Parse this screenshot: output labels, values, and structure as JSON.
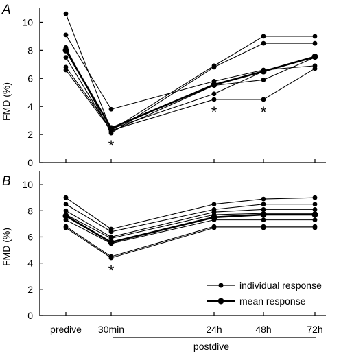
{
  "chart_data": [
    {
      "type": "line",
      "panel_label": "A",
      "ylabel": "FMD (%)",
      "ylim": [
        0,
        11
      ],
      "yticks": [
        "0",
        "2",
        "4",
        "6",
        "8",
        "10"
      ],
      "ytick_values": [
        0,
        2,
        4,
        6,
        8,
        10
      ],
      "x": [
        0,
        1,
        2,
        3,
        4
      ],
      "series": [
        {
          "kind": "individual",
          "values": [
            10.6,
            2.3,
            6.9,
            9.0,
            9.0
          ]
        },
        {
          "kind": "individual",
          "values": [
            9.1,
            3.8,
            5.8,
            6.6,
            6.9
          ]
        },
        {
          "kind": "individual",
          "values": [
            8.2,
            2.1,
            6.8,
            8.5,
            8.5
          ]
        },
        {
          "kind": "individual",
          "values": [
            7.5,
            2.2,
            5.5,
            5.9,
            7.5
          ]
        },
        {
          "kind": "individual",
          "values": [
            6.8,
            2.4,
            4.9,
            6.5,
            7.5
          ]
        },
        {
          "kind": "individual",
          "values": [
            6.6,
            2.3,
            4.5,
            4.5,
            6.7
          ]
        },
        {
          "kind": "mean",
          "values": [
            8.0,
            2.45,
            5.55,
            6.5,
            7.55
          ]
        }
      ],
      "significance": [
        {
          "x": 1,
          "label": "*"
        },
        {
          "x": 2,
          "label": "*"
        },
        {
          "x": 3,
          "label": "*"
        }
      ]
    },
    {
      "type": "line",
      "panel_label": "B",
      "ylabel": "FMD (%)",
      "ylim": [
        0,
        11
      ],
      "yticks": [
        "0",
        "2",
        "4",
        "6",
        "8",
        "10"
      ],
      "ytick_values": [
        0,
        2,
        4,
        6,
        8,
        10
      ],
      "x": [
        0,
        1,
        2,
        3,
        4
      ],
      "series": [
        {
          "kind": "individual",
          "values": [
            9.0,
            6.6,
            8.5,
            8.9,
            9.0
          ]
        },
        {
          "kind": "individual",
          "values": [
            8.5,
            6.4,
            8.1,
            8.5,
            8.5
          ]
        },
        {
          "kind": "individual",
          "values": [
            8.0,
            6.0,
            7.9,
            8.1,
            8.1
          ]
        },
        {
          "kind": "individual",
          "values": [
            7.7,
            5.9,
            7.7,
            7.8,
            7.8
          ]
        },
        {
          "kind": "individual",
          "values": [
            7.3,
            5.5,
            7.3,
            7.3,
            7.3
          ]
        },
        {
          "kind": "individual",
          "values": [
            6.8,
            4.5,
            6.8,
            6.8,
            6.8
          ]
        },
        {
          "kind": "individual",
          "values": [
            6.7,
            4.4,
            6.7,
            6.7,
            6.7
          ]
        },
        {
          "kind": "mean",
          "values": [
            7.6,
            5.6,
            7.5,
            7.7,
            7.7
          ]
        }
      ],
      "significance": [
        {
          "x": 1,
          "label": "*"
        }
      ]
    }
  ],
  "x_categories": [
    "predive",
    "30min",
    "24h",
    "48h",
    "72h"
  ],
  "x_group_label": "postdive",
  "legend": {
    "position": "bottom-right",
    "individual_label": "individual response",
    "mean_label": "mean response"
  },
  "colors": {
    "ink": "#000000",
    "background": "#ffffff"
  }
}
